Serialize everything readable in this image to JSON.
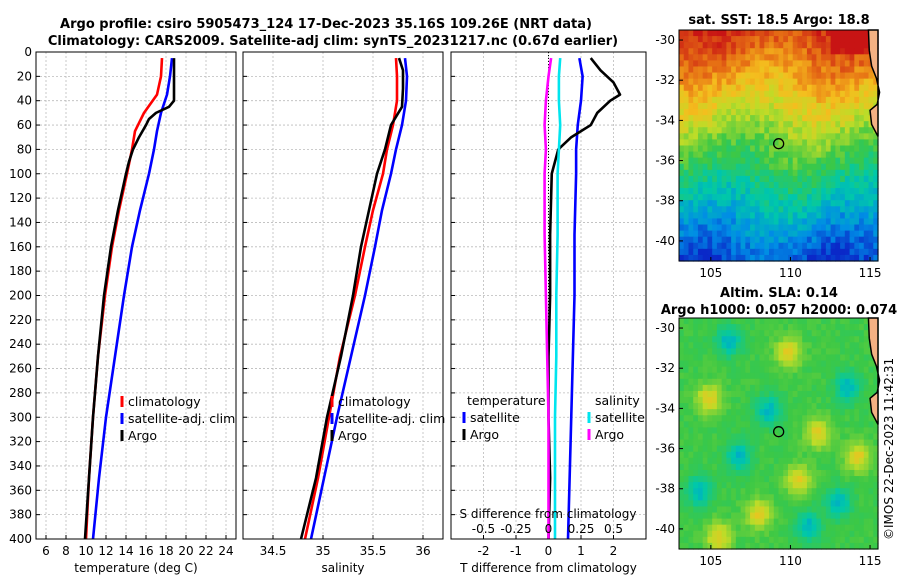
{
  "figure": {
    "title_line1": "Argo profile: csiro 5905473_124 17-Dec-2023 35.16S 109.26E (NRT data)",
    "title_line2": "Climatology: CARS2009. Satellite-adj clim: synTS_20231217.nc (0.67d earlier)",
    "copyright": "©IMOS 22-Dec-2023 11:42:31",
    "colors": {
      "climatology": "#ff0000",
      "satellite": "#0000ff",
      "argo": "#000000",
      "salinity_sat": "#00e5ee",
      "salinity_argo": "#ff00ff"
    }
  },
  "chart_data": [
    {
      "type": "line",
      "id": "temperature",
      "xlabel": "temperature (deg C)",
      "ylabel": "",
      "xlim": [
        5,
        25
      ],
      "ylim": [
        400,
        0
      ],
      "xticks": [
        6,
        8,
        10,
        12,
        14,
        16,
        18,
        20,
        22,
        24
      ],
      "xtick_labels": [
        "6",
        "8",
        "10",
        "12",
        "14",
        "16",
        "18",
        "20",
        "22",
        "24"
      ],
      "yticks": [
        0,
        20,
        40,
        60,
        80,
        100,
        120,
        140,
        160,
        180,
        200,
        220,
        240,
        260,
        280,
        300,
        320,
        340,
        360,
        380,
        400
      ],
      "ytick_labels": [
        "0",
        "20",
        "40",
        "60",
        "80",
        "100",
        "120",
        "140",
        "160",
        "180",
        "200",
        "220",
        "240",
        "260",
        "280",
        "300",
        "320",
        "340",
        "360",
        "380",
        "400"
      ],
      "legend": [
        "climatology",
        "satellite-adj. clim",
        "Argo"
      ],
      "series": [
        {
          "name": "climatology",
          "color": "#ff0000",
          "depth": [
            5,
            20,
            35,
            50,
            65,
            80,
            100,
            130,
            160,
            200,
            250,
            300,
            350,
            400
          ],
          "values": [
            17.6,
            17.5,
            17.1,
            15.8,
            14.9,
            14.6,
            14.1,
            13.3,
            12.6,
            11.9,
            11.2,
            10.7,
            10.3,
            10.0
          ]
        },
        {
          "name": "satellite-adj. clim",
          "color": "#0000ff",
          "depth": [
            5,
            20,
            35,
            50,
            65,
            80,
            100,
            130,
            160,
            200,
            250,
            300,
            350,
            400
          ],
          "values": [
            18.6,
            18.4,
            18.1,
            17.5,
            17.1,
            16.8,
            16.3,
            15.4,
            14.6,
            13.8,
            12.9,
            12.0,
            11.3,
            10.7
          ]
        },
        {
          "name": "Argo",
          "color": "#000000",
          "depth": [
            5,
            20,
            30,
            40,
            45,
            50,
            55,
            60,
            70,
            80,
            90,
            100,
            130,
            160,
            200,
            250,
            300,
            350,
            400
          ],
          "values": [
            18.8,
            18.8,
            18.8,
            18.8,
            18.3,
            17.0,
            16.3,
            16.0,
            15.3,
            14.7,
            14.3,
            14.0,
            13.2,
            12.5,
            11.8,
            11.2,
            10.7,
            10.3,
            9.9
          ]
        }
      ]
    },
    {
      "type": "line",
      "id": "salinity",
      "xlabel": "salinity",
      "ylabel": "",
      "xlim": [
        34.2,
        36.2
      ],
      "ylim": [
        400,
        0
      ],
      "xticks": [
        34.5,
        35,
        35.5,
        36
      ],
      "xtick_labels": [
        "34.5",
        "35",
        "35.5",
        "36"
      ],
      "legend": [
        "climatology",
        "satellite-adj. clim",
        "Argo"
      ],
      "series": [
        {
          "name": "climatology",
          "color": "#ff0000",
          "depth": [
            5,
            20,
            40,
            60,
            80,
            100,
            130,
            160,
            200,
            250,
            300,
            350,
            400
          ],
          "values": [
            35.73,
            35.74,
            35.74,
            35.7,
            35.64,
            35.6,
            35.5,
            35.42,
            35.32,
            35.17,
            35.06,
            34.95,
            34.82
          ]
        },
        {
          "name": "satellite-adj. clim",
          "color": "#0000ff",
          "depth": [
            5,
            20,
            40,
            60,
            80,
            100,
            130,
            160,
            200,
            250,
            300,
            350,
            400
          ],
          "values": [
            35.82,
            35.84,
            35.83,
            35.79,
            35.73,
            35.68,
            35.59,
            35.52,
            35.42,
            35.28,
            35.14,
            35.01,
            34.88
          ]
        },
        {
          "name": "Argo",
          "color": "#000000",
          "depth": [
            5,
            15,
            30,
            45,
            60,
            80,
            100,
            130,
            160,
            200,
            250,
            300,
            350,
            400
          ],
          "values": [
            35.76,
            35.8,
            35.8,
            35.79,
            35.68,
            35.62,
            35.54,
            35.46,
            35.38,
            35.3,
            35.18,
            35.04,
            34.93,
            34.78
          ]
        }
      ]
    },
    {
      "type": "line",
      "id": "difference",
      "xlabel": "T difference from climatology",
      "xlabel_top": "S difference from climatology",
      "xlim": [
        -3,
        3
      ],
      "ylim": [
        400,
        0
      ],
      "xticks": [
        -2,
        -1,
        0,
        1,
        2
      ],
      "xtick_labels": [
        "-2",
        "-1",
        "0",
        "1",
        "2"
      ],
      "xticks_top": [
        -0.5,
        -0.25,
        0,
        0.25,
        0.5
      ],
      "xtick_labels_top": [
        "-0.5",
        "-0.25",
        "0",
        "0.25",
        "0.5"
      ],
      "s_scale_factor": 4,
      "legend_temperature_title": "temperature",
      "legend_salinity_title": "salinity",
      "legend_temperature": [
        "satellite",
        "Argo"
      ],
      "legend_salinity": [
        "satellite",
        "Argo"
      ],
      "series": [
        {
          "name": "T satellite",
          "color": "#0000ff",
          "depth": [
            5,
            20,
            40,
            60,
            80,
            100,
            150,
            200,
            250,
            300,
            350,
            400
          ],
          "values": [
            0.95,
            1.05,
            1.0,
            0.9,
            0.85,
            0.85,
            0.8,
            0.8,
            0.75,
            0.7,
            0.65,
            0.6
          ]
        },
        {
          "name": "T Argo",
          "color": "#000000",
          "depth": [
            5,
            15,
            25,
            35,
            40,
            50,
            60,
            70,
            80,
            100,
            150,
            200,
            250,
            300,
            350,
            400
          ],
          "values": [
            1.3,
            1.6,
            2.0,
            2.2,
            1.9,
            1.5,
            1.3,
            0.7,
            0.3,
            0.1,
            0.05,
            0.05,
            0.0,
            0.0,
            0.05,
            0.0
          ]
        },
        {
          "name": "S satellite",
          "color": "#00e5ee",
          "depth": [
            5,
            20,
            40,
            60,
            80,
            100,
            150,
            200,
            250,
            300,
            350,
            400
          ],
          "values": [
            0.09,
            0.08,
            0.08,
            0.09,
            0.08,
            0.07,
            0.07,
            0.06,
            0.06,
            0.05,
            0.05,
            0.05
          ]
        },
        {
          "name": "S Argo",
          "color": "#ff00ff",
          "depth": [
            5,
            20,
            40,
            60,
            80,
            100,
            150,
            200,
            250,
            300,
            350,
            400
          ],
          "values": [
            0.02,
            0.0,
            -0.02,
            -0.03,
            -0.02,
            -0.03,
            -0.03,
            -0.02,
            -0.01,
            0.0,
            0.0,
            0.0
          ]
        }
      ]
    },
    {
      "type": "heatmap",
      "id": "sst_map",
      "title": "sat. SST: 18.5 Argo: 18.8",
      "xlim": [
        103,
        115.5
      ],
      "ylim": [
        -41,
        -29.5
      ],
      "xticks": [
        105,
        110,
        115
      ],
      "xtick_labels": [
        "105",
        "110",
        "115"
      ],
      "yticks": [
        -30,
        -32,
        -34,
        -36,
        -38,
        -40
      ],
      "ytick_labels": [
        "-30",
        "-32",
        "-34",
        "-36",
        "-38",
        "-40"
      ],
      "argo_position": [
        109.26,
        -35.16
      ]
    },
    {
      "type": "heatmap",
      "id": "sla_map",
      "title_line1": "Altim. SLA: 0.14",
      "title_line2": "Argo h1000: 0.057 h2000: 0.074",
      "xlim": [
        103,
        115.5
      ],
      "ylim": [
        -41,
        -29.5
      ],
      "xticks": [
        105,
        110,
        115
      ],
      "xtick_labels": [
        "105",
        "110",
        "115"
      ],
      "yticks": [
        -30,
        -32,
        -34,
        -36,
        -38,
        -40
      ],
      "ytick_labels": [
        "-30",
        "-32",
        "-34",
        "-36",
        "-38",
        "-40"
      ],
      "argo_position": [
        109.26,
        -35.16
      ]
    }
  ]
}
